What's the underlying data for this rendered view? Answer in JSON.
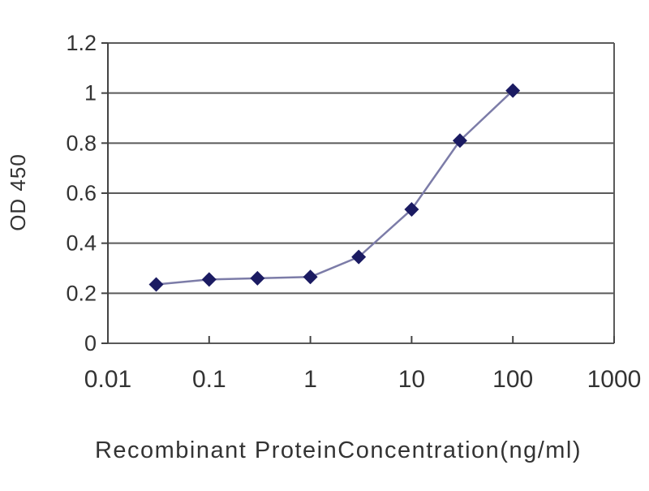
{
  "page": {
    "background_color": "#ffffff"
  },
  "chart_data": {
    "type": "line",
    "title": "",
    "xlabel": "Recombinant ProteinConcentration(ng/ml)",
    "ylabel": "OD 450",
    "x_scale": "log",
    "xlim": [
      0.01,
      1000
    ],
    "ylim": [
      0,
      1.2
    ],
    "x_ticks": {
      "values": [
        0.01,
        0.1,
        1,
        10,
        100,
        1000
      ],
      "labels": [
        "0.01",
        "0.1",
        "1",
        "10",
        "100",
        "1000"
      ]
    },
    "y_ticks": {
      "values": [
        0,
        0.2,
        0.4,
        0.6,
        0.8,
        1,
        1.2
      ],
      "labels": [
        "0",
        "0.2",
        "0.4",
        "0.6",
        "0.8",
        "1",
        "1.2"
      ]
    },
    "grid": "horizontal",
    "legend": "none",
    "series": [
      {
        "marker": "diamond",
        "x": [
          0.03,
          0.1,
          0.3,
          1,
          3,
          10,
          30,
          100
        ],
        "y": [
          0.235,
          0.255,
          0.26,
          0.265,
          0.345,
          0.535,
          0.81,
          1.01
        ]
      }
    ],
    "colors": {
      "line": "#7c7ca8",
      "marker": "#1b1b62",
      "grid": "#5a5a5a",
      "axis": "#434343",
      "text": "#333333",
      "plot_background": "#ffffff"
    }
  }
}
